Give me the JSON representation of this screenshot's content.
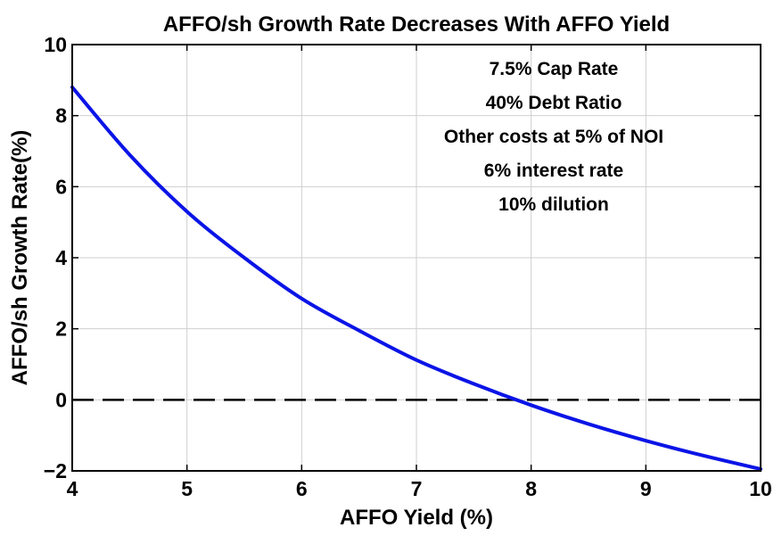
{
  "chart_data": {
    "type": "line",
    "title": "AFFO/sh Growth Rate Decreases With AFFO Yield",
    "xlabel": "AFFO Yield (%)",
    "ylabel": "AFFO/sh Growth Rate(%)",
    "xlim": [
      4,
      10
    ],
    "ylim": [
      -2,
      10
    ],
    "xticks": [
      4,
      5,
      6,
      7,
      8,
      9,
      10
    ],
    "yticks": [
      -2,
      0,
      2,
      4,
      6,
      8,
      10
    ],
    "xtick_labels": [
      "4",
      "5",
      "6",
      "7",
      "8",
      "9",
      "10"
    ],
    "ytick_labels": [
      "−2",
      "0",
      "2",
      "4",
      "6",
      "8",
      "10"
    ],
    "grid": true,
    "series": [
      {
        "color": "#0a14e6",
        "x": [
          4.0,
          4.5,
          5.0,
          5.5,
          6.0,
          6.5,
          7.0,
          7.5,
          8.0,
          8.5,
          9.0,
          9.5,
          10.0
        ],
        "y": [
          8.8,
          6.9,
          5.3,
          4.0,
          2.85,
          1.95,
          1.12,
          0.45,
          -0.15,
          -0.68,
          -1.15,
          -1.57,
          -1.95
        ]
      }
    ],
    "reference_lines": [
      {
        "y": 0,
        "style": "dashed",
        "color": "#000000"
      }
    ],
    "annotations": [
      "7.5% Cap Rate",
      "40% Debt Ratio",
      "Other costs at 5% of NOI",
      "6% interest rate",
      "10% dilution"
    ]
  }
}
